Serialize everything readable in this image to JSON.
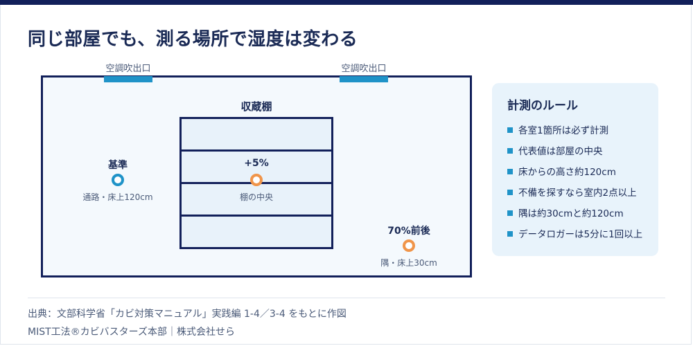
{
  "title": "同じ部屋でも、測る場所で湿度は変わる",
  "diagram": {
    "vents": [
      {
        "label": "空調吹出口"
      },
      {
        "label": "空調吹出口"
      }
    ],
    "shelf": {
      "label": "収蔵棚"
    },
    "points": [
      {
        "label": "基準",
        "sub": "通路・床上120cm",
        "color": "#1f93c8"
      },
      {
        "label": "+5%",
        "sub": "棚の中央",
        "color": "#f0954a"
      },
      {
        "label": "70%前後",
        "sub": "隅・床上30cm",
        "color": "#f0954a"
      }
    ]
  },
  "rules": {
    "title": "計測のルール",
    "items": [
      "各室1箇所は必ず計測",
      "代表値は部屋の中央",
      "床からの高さ約120cm",
      "不備を探すなら室内2点以上",
      "隅は約30cmと約120cm",
      "データロガーは5分に1回以上"
    ]
  },
  "footer": {
    "line1": "出典：文部科学省「カビ対策マニュアル」実践編 1-4／3-4 をもとに作図",
    "line2": "MIST工法®カビバスターズ本部｜株式会社せら"
  },
  "colors": {
    "navy": "#12205a",
    "accent_blue": "#1f93c8",
    "accent_orange": "#f0954a"
  }
}
